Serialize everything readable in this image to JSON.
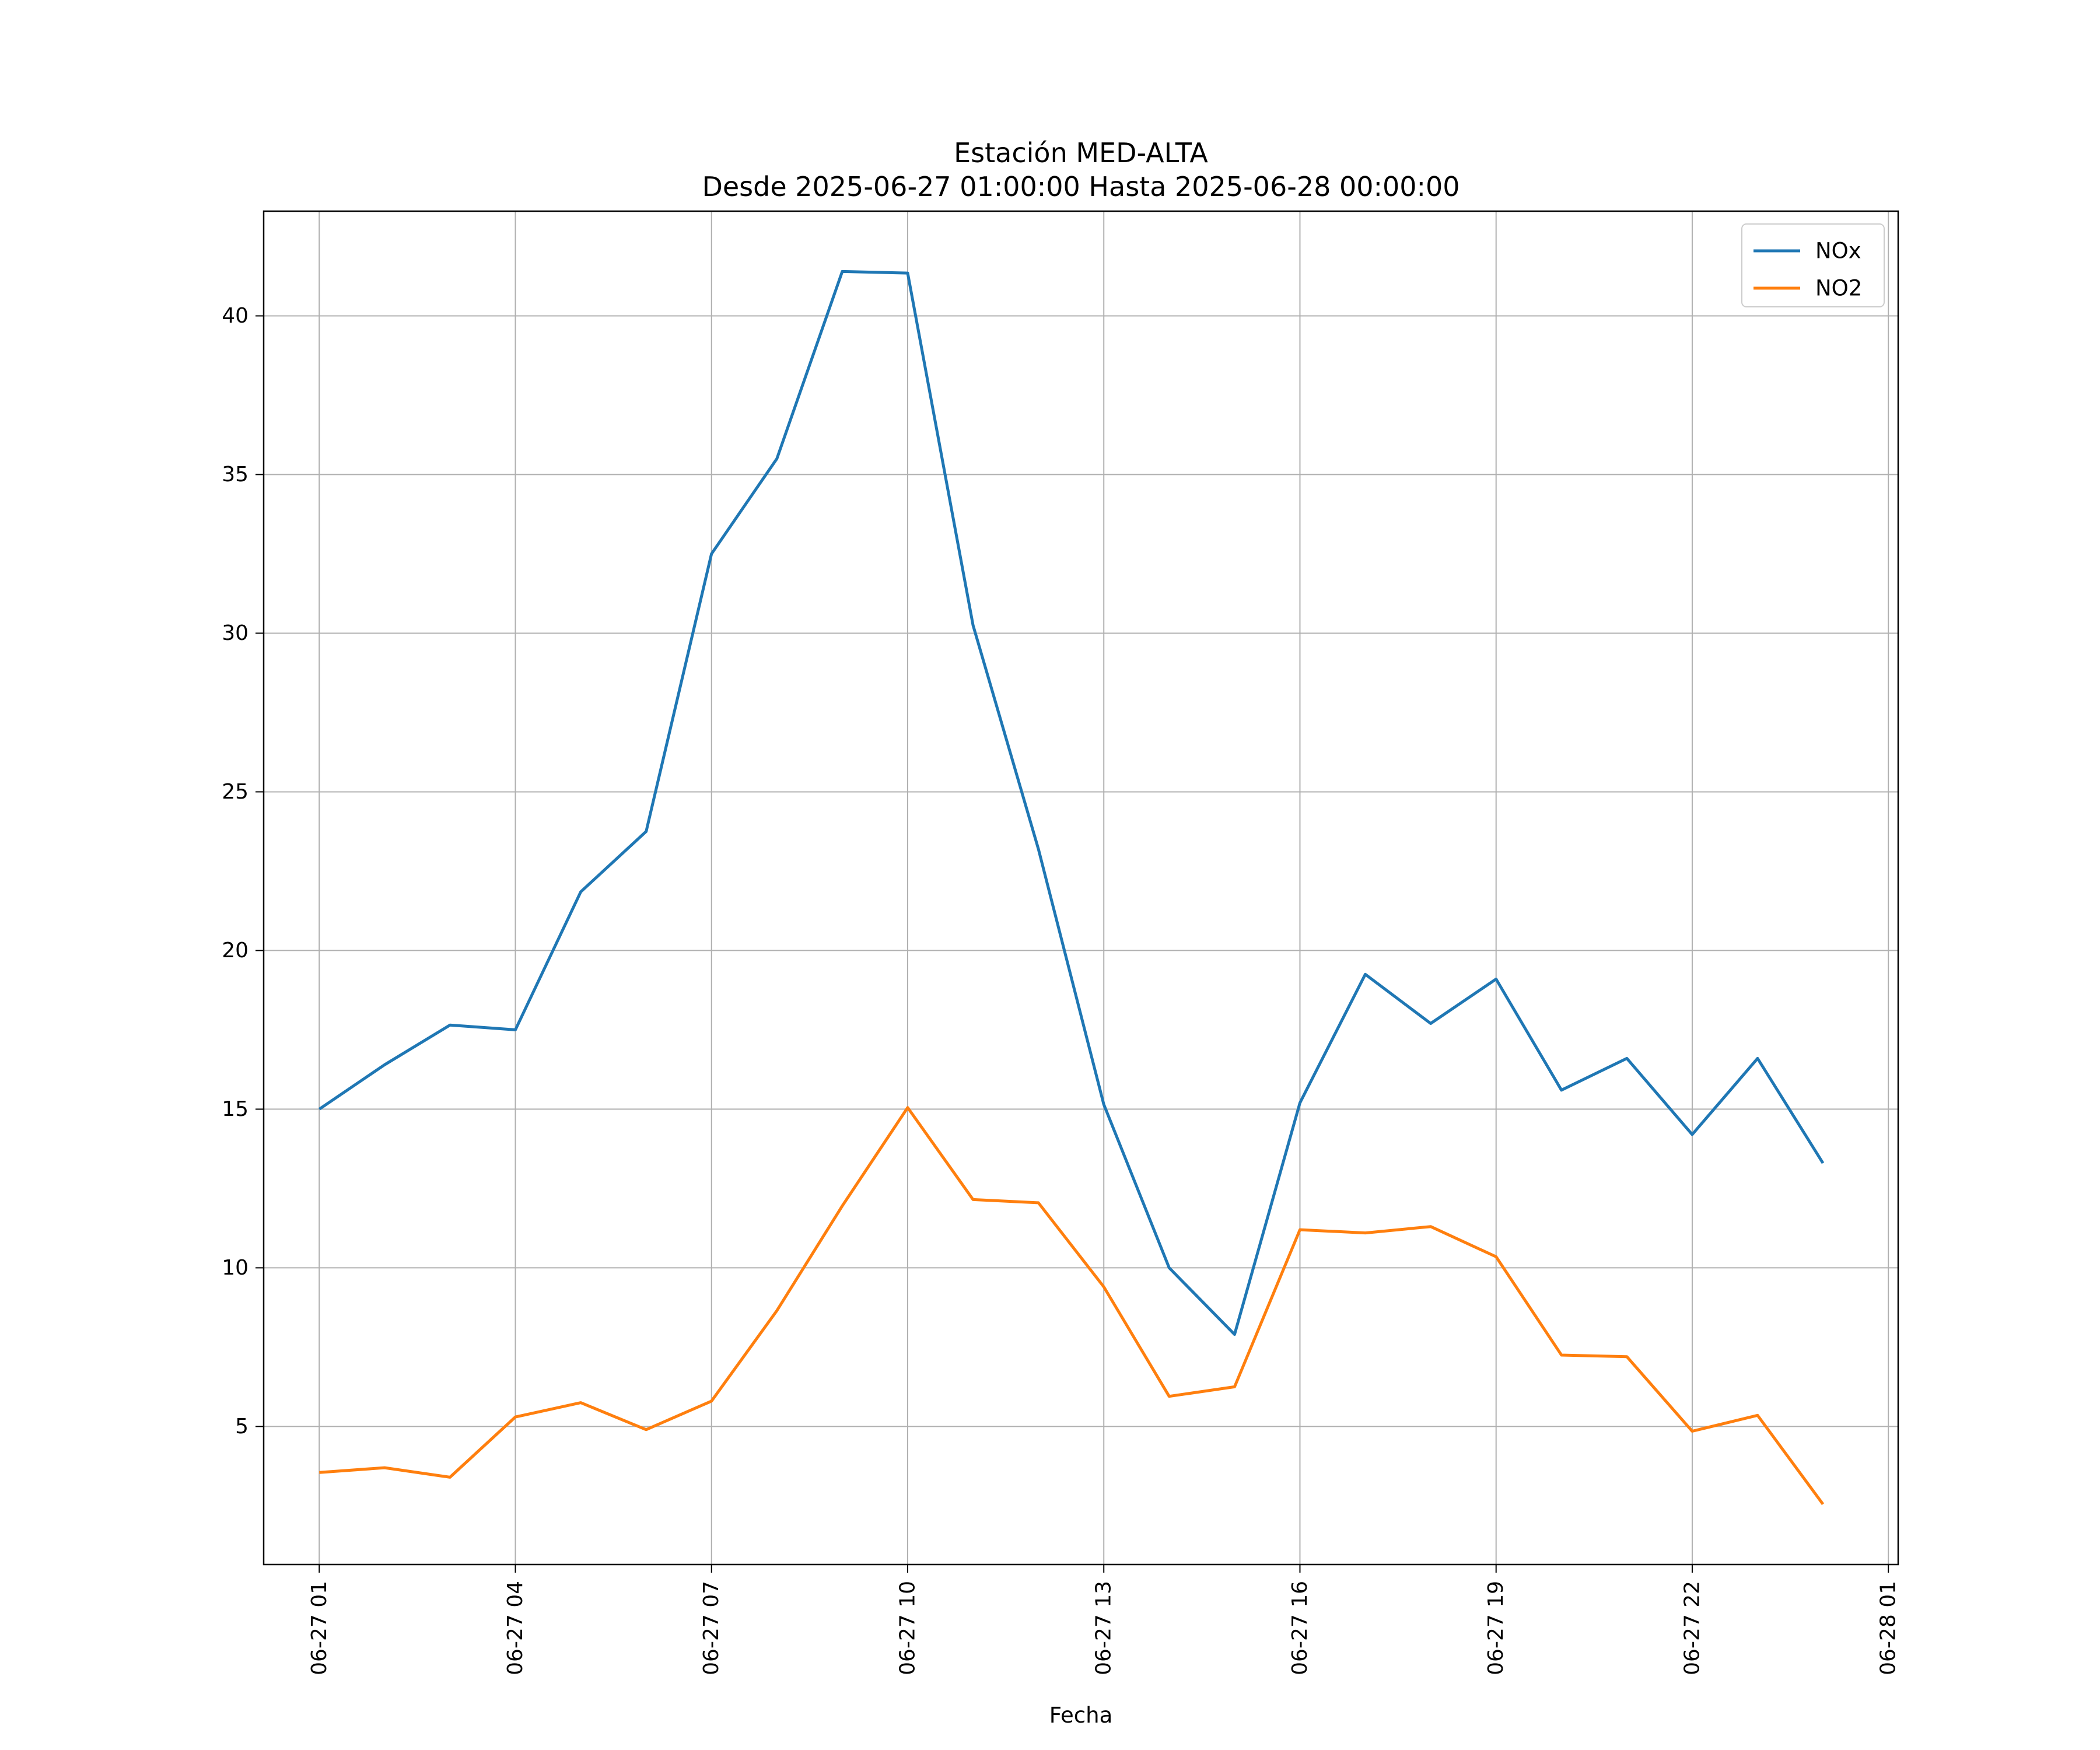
{
  "chart_data": {
    "type": "line",
    "title": "Estación MED-ALTA",
    "subtitle": "Desde 2025-06-27 01:00:00 Hasta 2025-06-28 00:00:00",
    "xlabel": "Fecha",
    "ylabel": "",
    "x": [
      "06-27 01",
      "06-27 02",
      "06-27 03",
      "06-27 04",
      "06-27 05",
      "06-27 06",
      "06-27 07",
      "06-27 08",
      "06-27 09",
      "06-27 10",
      "06-27 11",
      "06-27 12",
      "06-27 13",
      "06-27 14",
      "06-27 15",
      "06-27 16",
      "06-27 17",
      "06-27 18",
      "06-27 19",
      "06-27 20",
      "06-27 21",
      "06-27 22",
      "06-27 23",
      "06-28 00"
    ],
    "x_ticks": [
      "06-27 01",
      "06-27 04",
      "06-27 07",
      "06-27 10",
      "06-27 13",
      "06-27 16",
      "06-27 19",
      "06-27 22",
      "06-28 01"
    ],
    "y_ticks": [
      5,
      10,
      15,
      20,
      25,
      30,
      35,
      40
    ],
    "xlim": [
      "06-27 00:09",
      "06-28 01:09"
    ],
    "ylim": [
      0.65,
      43.3
    ],
    "grid": true,
    "legend": "top-right",
    "series": [
      {
        "name": "NOx",
        "color": "#1f77b4",
        "values": [
          15.0,
          16.4,
          17.65,
          17.5,
          21.85,
          23.75,
          32.5,
          35.5,
          41.4,
          41.35,
          30.25,
          23.2,
          15.15,
          10.0,
          7.9,
          15.2,
          19.25,
          17.7,
          19.1,
          15.6,
          16.6,
          14.2,
          16.6,
          13.3
        ]
      },
      {
        "name": "NO2",
        "color": "#ff7f0e",
        "values": [
          3.55,
          3.7,
          3.4,
          5.3,
          5.75,
          4.9,
          5.8,
          8.65,
          11.95,
          15.05,
          12.15,
          12.05,
          9.4,
          5.95,
          6.25,
          11.2,
          11.1,
          11.3,
          10.35,
          7.25,
          7.2,
          4.85,
          5.35,
          2.55
        ]
      }
    ]
  }
}
